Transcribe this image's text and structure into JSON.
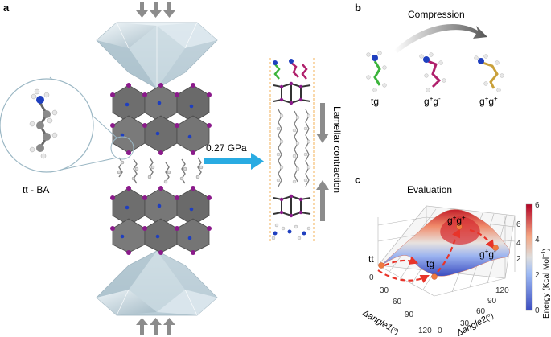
{
  "panels": {
    "a": {
      "letter": "a",
      "molecule_label": "tt - BA",
      "pressure_label": "0.27 GPa",
      "contraction_label": "Lamellar contraction"
    },
    "b": {
      "letter": "b",
      "title": "Compression",
      "conformers": [
        {
          "main": "tg",
          "sup1": "",
          "mid": "",
          "sup2": ""
        },
        {
          "main": "g",
          "sup1": "+",
          "mid": "g",
          "sup2": "-"
        },
        {
          "main": "g",
          "sup1": "+",
          "mid": "g",
          "sup2": "+"
        }
      ]
    },
    "c": {
      "letter": "c",
      "title": "Evaluation",
      "point_labels": {
        "tt": "tt",
        "tg": "tg",
        "gpgp": {
          "main": "g",
          "sup1": "+",
          "mid": "g",
          "sup2": "+"
        },
        "gpgm": {
          "main": "g",
          "sup1": "+",
          "mid": "g",
          "sup2": "-"
        }
      },
      "axis1": {
        "label": "Δangle1",
        "unit": "(°)",
        "ticks": [
          "0",
          "30",
          "60",
          "90",
          "120"
        ]
      },
      "axis2": {
        "label": "Δangle2",
        "unit": "(°)",
        "ticks": [
          "0",
          "30",
          "60",
          "90",
          "120"
        ]
      },
      "z_ticks": [
        "2",
        "4",
        "6"
      ],
      "colorbar": {
        "label": "Energy (Kcal Mol",
        "label_sup": "−1",
        "label_end": ")",
        "ticks": [
          "0",
          "2",
          "4",
          "6"
        ],
        "color_low": "#3b4cc0",
        "color_mid": "#dddddd",
        "color_high": "#b40426"
      }
    }
  },
  "colors": {
    "arrow_blue": "#29abe2",
    "arrow_gray": "#8c8c8c",
    "octahedron": "#6e6e6e",
    "iodine": "#8b1a8b",
    "nitrogen": "#1f3fbf",
    "conformer_green": "#3cb43c",
    "conformer_magenta": "#b0206c",
    "conformer_gold": "#c9a03a",
    "path_red": "#e8342a"
  }
}
